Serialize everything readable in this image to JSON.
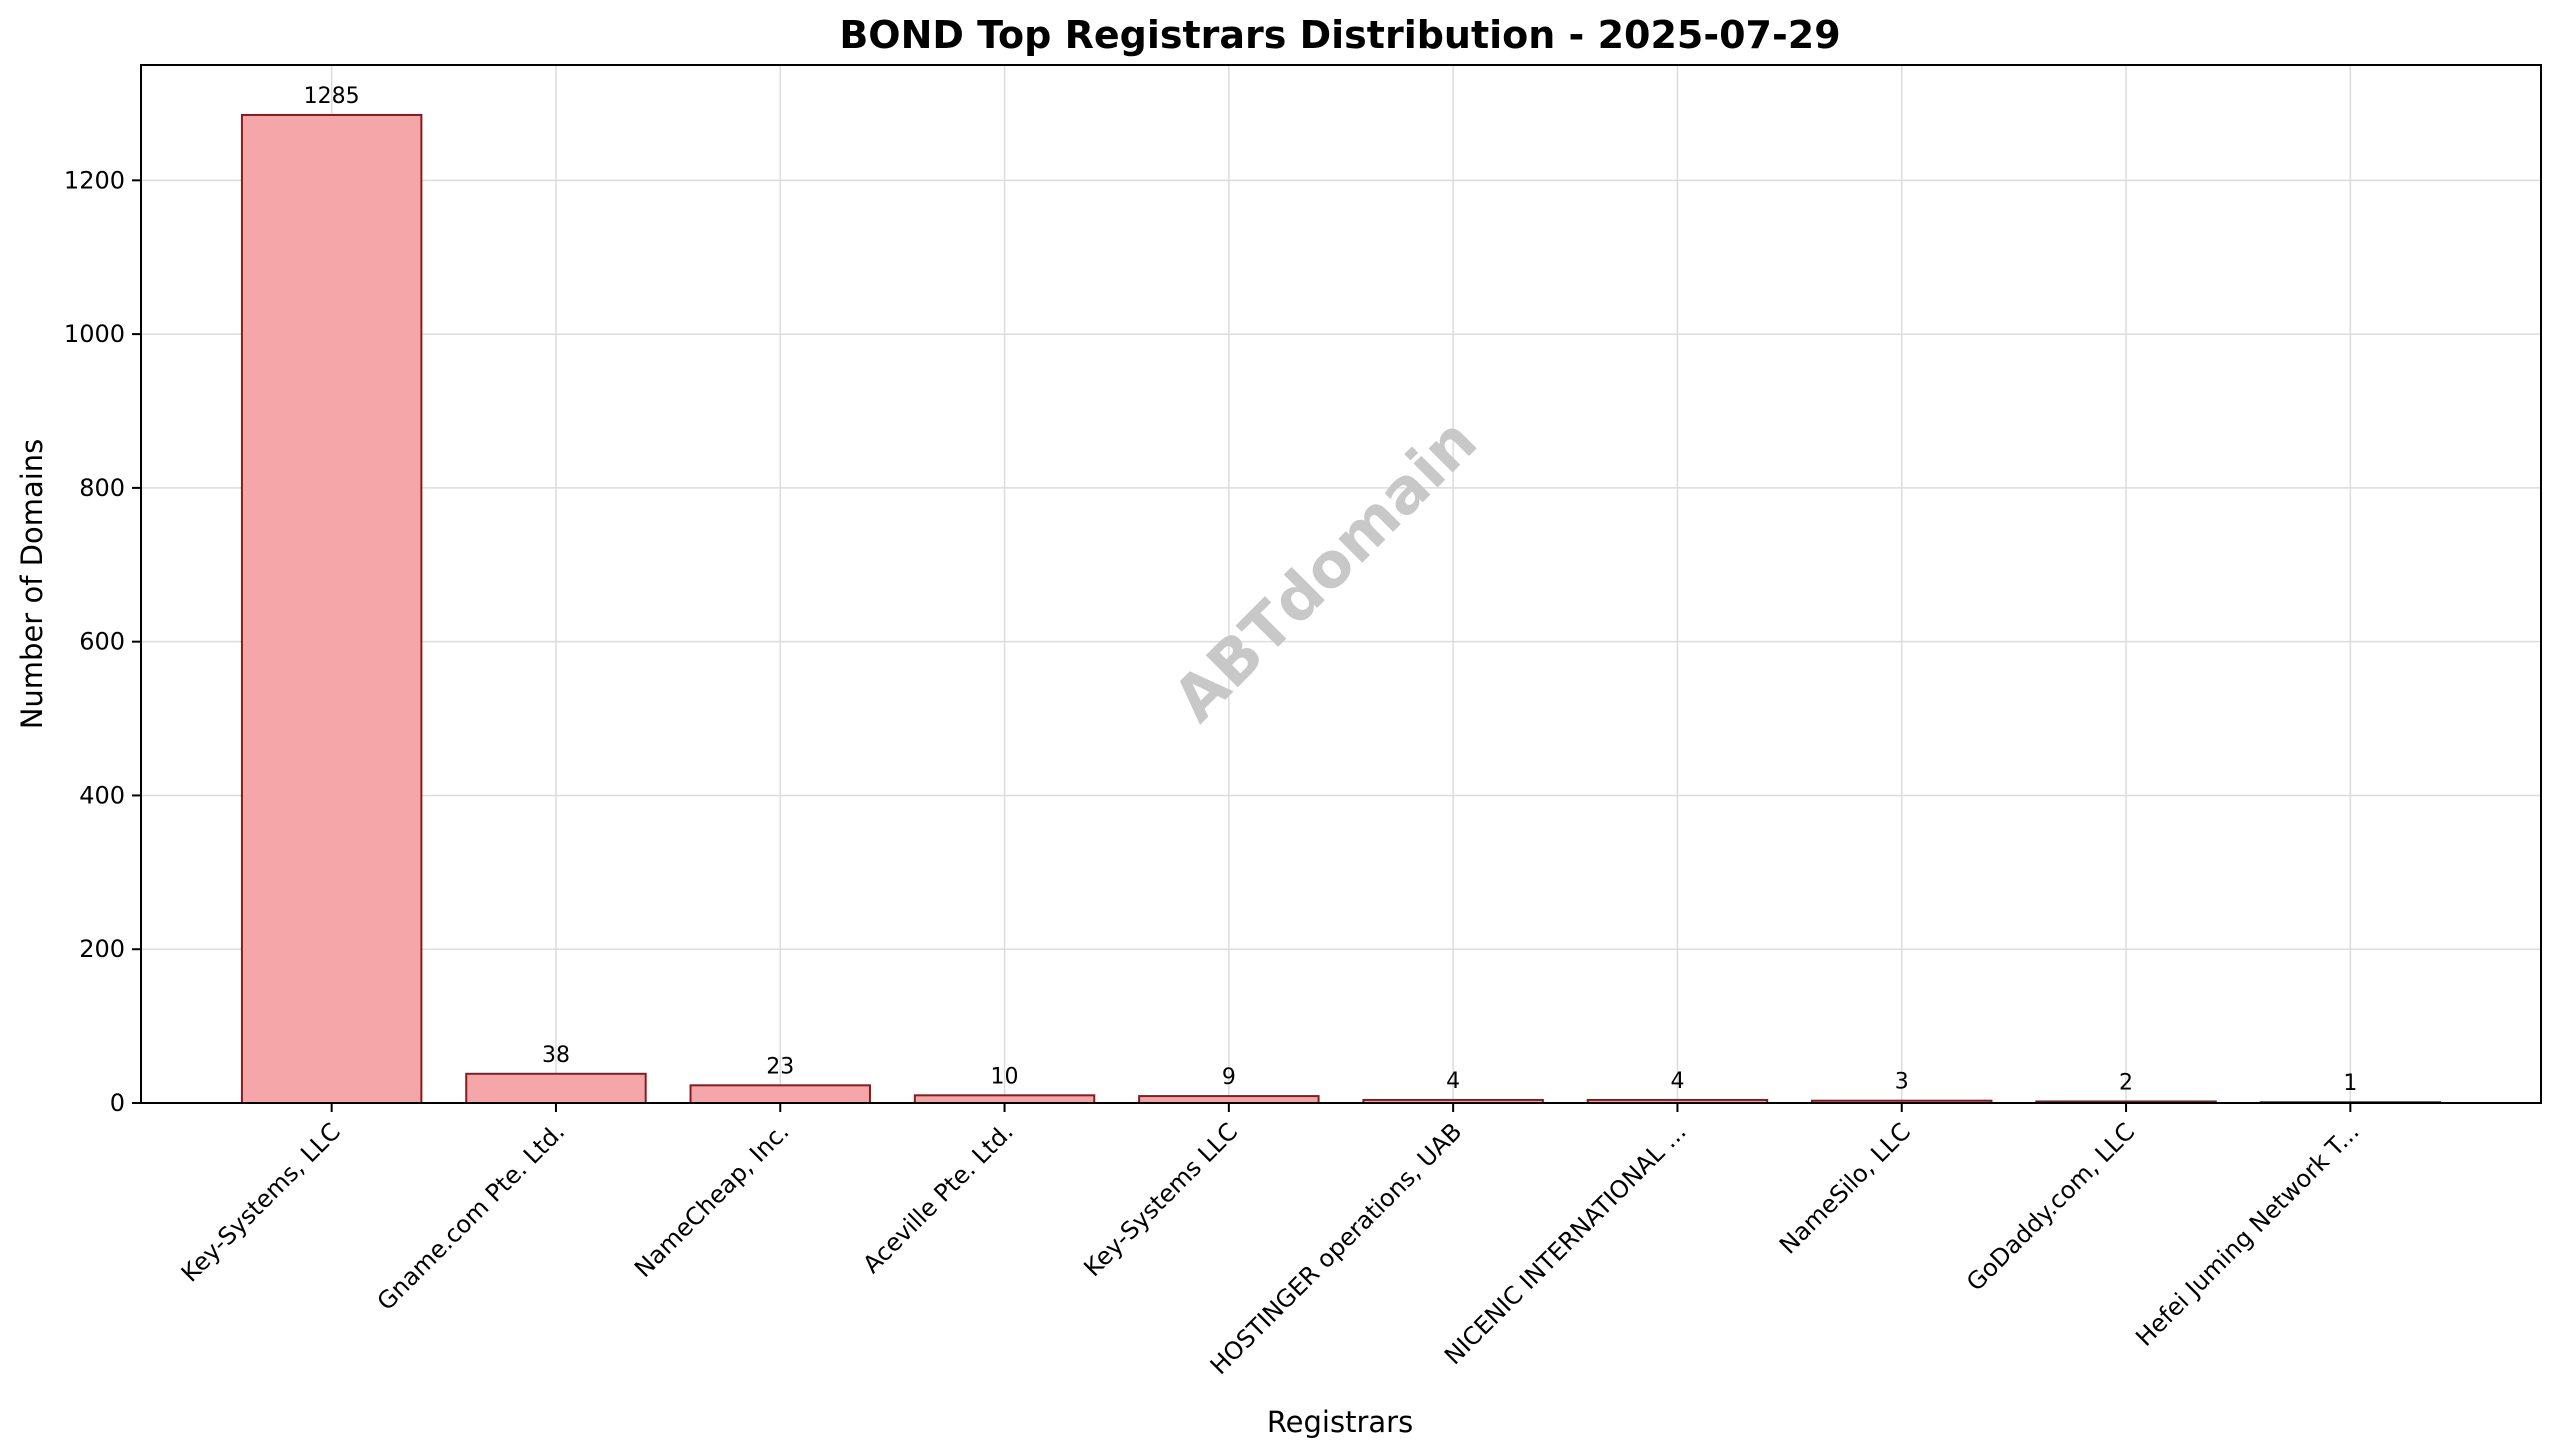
{
  "chart_data": {
    "type": "bar",
    "title": "BOND Top Registrars Distribution - 2025-07-29",
    "xlabel": "Registrars",
    "ylabel": "Number of Domains",
    "categories": [
      "Key-Systems, LLC",
      "Gname.com Pte. Ltd.",
      "NameCheap, Inc.",
      "Aceville Pte. Ltd.",
      "Key-Systems LLC",
      "HOSTINGER operations, UAB",
      "NICENIC INTERNATIONAL ...",
      "NameSilo, LLC",
      "GoDaddy.com, LLC",
      "Hefei Juming Network T..."
    ],
    "values": [
      1285,
      38,
      23,
      10,
      9,
      4,
      4,
      3,
      2,
      1
    ],
    "ylim": [
      0,
      1350
    ],
    "yticks": [
      0,
      200,
      400,
      600,
      800,
      1000,
      1200
    ],
    "grid": true,
    "bar_color": "#f4a6a8",
    "bar_edge_color": "#8b1a1a",
    "watermark": "ABTdomain"
  }
}
